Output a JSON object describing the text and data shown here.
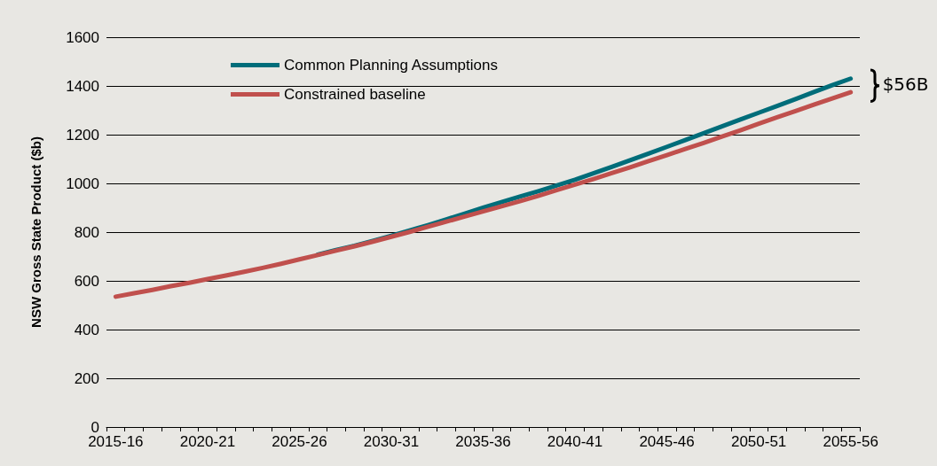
{
  "chart_data": {
    "type": "line",
    "ylabel": "NSW Gross State Product ($b)",
    "categories": [
      "2015-16",
      null,
      null,
      null,
      null,
      "2020-21",
      null,
      null,
      null,
      null,
      "2025-26",
      null,
      null,
      null,
      null,
      "2030-31",
      null,
      null,
      null,
      null,
      "2035-36",
      null,
      null,
      null,
      null,
      "2040-41",
      null,
      null,
      null,
      null,
      "2045-46",
      null,
      null,
      null,
      null,
      "2050-51",
      null,
      null,
      null,
      null,
      "2055-56"
    ],
    "series": [
      {
        "name": "Common Planning Assumptions",
        "color": "#006d7a",
        "values": [
          null,
          null,
          null,
          null,
          null,
          null,
          null,
          null,
          null,
          null,
          null,
          708,
          727,
          744,
          764,
          785,
          807,
          829,
          852,
          876,
          900,
          923,
          946,
          968,
          991,
          1015,
          1041,
          1068,
          1095,
          1122,
          1150,
          1178,
          1206,
          1234,
          1262,
          1290,
          1318,
          1346,
          1375,
          1403,
          1430
        ]
      },
      {
        "name": "Constrained baseline",
        "color": "#c0504d",
        "values": [
          535,
          549,
          563,
          578,
          592,
          607,
          622,
          637,
          653,
          670,
          688,
          706,
          724,
          742,
          761,
          781,
          801,
          822,
          843,
          864,
          885,
          906,
          927,
          949,
          972,
          995,
          1018,
          1042,
          1066,
          1091,
          1116,
          1141,
          1166,
          1192,
          1218,
          1245,
          1271,
          1297,
          1323,
          1349,
          1374
        ]
      }
    ],
    "ylim": [
      0,
      1600
    ],
    "yticks": [
      0,
      200,
      400,
      600,
      800,
      1000,
      1200,
      1400,
      1600
    ],
    "grid": "y",
    "legend": "top left",
    "marker": "none",
    "line_style": "solid",
    "annotations": [
      "$56B"
    ]
  }
}
